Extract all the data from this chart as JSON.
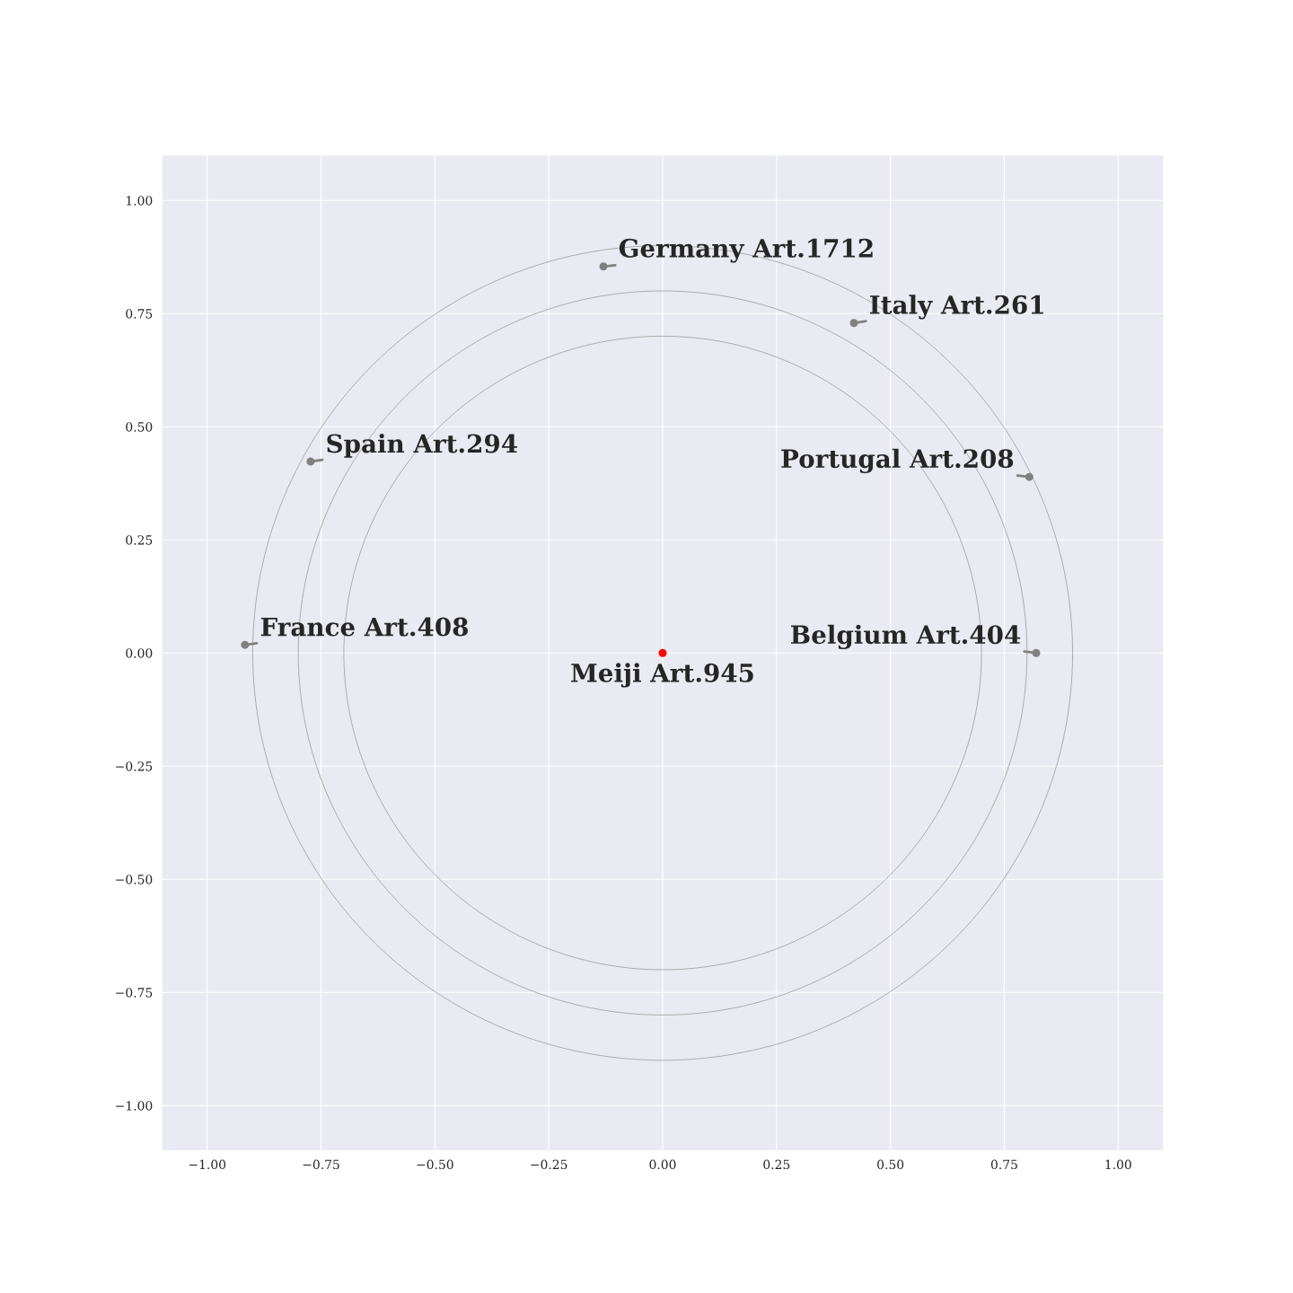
{
  "chart_data": {
    "type": "scatter",
    "series": [
      {
        "marker": "circle",
        "x": [
          0,
          -0.13,
          0.42,
          -0.773,
          0.805,
          -0.917,
          0.82
        ],
        "values": [
          0,
          0.854,
          0.729,
          0.423,
          0.389,
          0.018,
          0
        ],
        "colors": [
          "#ff0000",
          "#808080",
          "#808080",
          "#808080",
          "#808080",
          "#808080",
          "#808080"
        ]
      }
    ],
    "annotations": [
      {
        "text": "Meiji Art.945",
        "x": 0,
        "y": 0
      },
      {
        "text": "Germany Art.1712",
        "x": -0.13,
        "y": 0.854
      },
      {
        "text": "Italy Art.261",
        "x": 0.42,
        "y": 0.729
      },
      {
        "text": "Spain Art.294",
        "x": -0.773,
        "y": 0.423
      },
      {
        "text": "Portugal Art.208",
        "x": 0.805,
        "y": 0.389
      },
      {
        "text": "France Art.408",
        "x": -0.917,
        "y": 0.018
      },
      {
        "text": "Belgium Art.404",
        "x": 0.82,
        "y": 0
      }
    ],
    "xlim": [
      -1.1,
      1.1
    ],
    "ylim": [
      -1.1,
      1.1
    ],
    "xticks": [
      {
        "value": -1,
        "label": "−1.00"
      },
      {
        "value": -0.75,
        "label": "−0.75"
      },
      {
        "value": -0.5,
        "label": "−0.50"
      },
      {
        "value": -0.25,
        "label": "−0.25"
      },
      {
        "value": 0,
        "label": "0.00"
      },
      {
        "value": 0.25,
        "label": "0.25"
      },
      {
        "value": 0.5,
        "label": "0.50"
      },
      {
        "value": 0.75,
        "label": "0.75"
      },
      {
        "value": 1,
        "label": "1.00"
      }
    ],
    "yticks": [
      {
        "value": -1,
        "label": "−1.00"
      },
      {
        "value": -0.75,
        "label": "−0.75"
      },
      {
        "value": -0.5,
        "label": "−0.50"
      },
      {
        "value": -0.25,
        "label": "−0.25"
      },
      {
        "value": 0,
        "label": "0.00"
      },
      {
        "value": 0.25,
        "label": "0.25"
      },
      {
        "value": 0.5,
        "label": "0.50"
      },
      {
        "value": 0.75,
        "label": "0.75"
      },
      {
        "value": 1,
        "label": "1.00"
      }
    ],
    "grid": true,
    "legend": false
  }
}
